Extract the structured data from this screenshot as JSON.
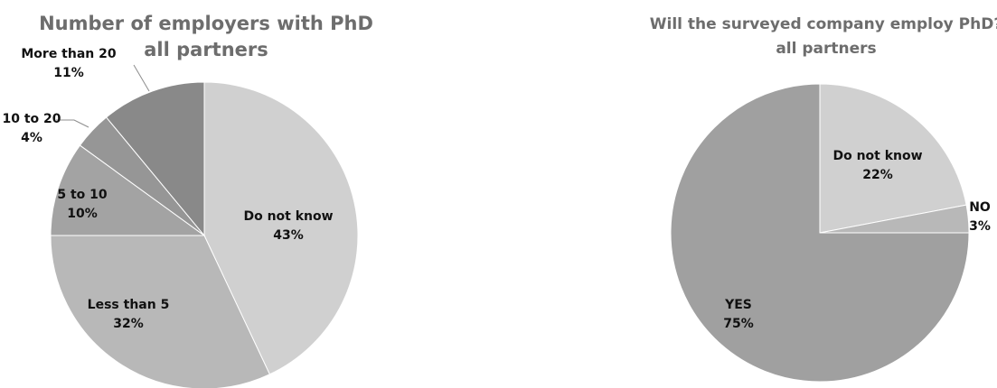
{
  "chart_data": [
    {
      "type": "pie",
      "title": "Number of employers with PhD",
      "subtitle": "all partners",
      "slices": [
        {
          "name": "Do not know",
          "value": 43,
          "value_label": "43%",
          "color": "#d0d0d0"
        },
        {
          "name": "Less than 5",
          "value": 32,
          "value_label": "32%",
          "color": "#b8b8b8"
        },
        {
          "name": "5 to 10",
          "value": 10,
          "value_label": "10%",
          "color": "#a3a3a3"
        },
        {
          "name": "10 to 20",
          "value": 4,
          "value_label": "4%",
          "color": "#969696"
        },
        {
          "name": "More than 20",
          "value": 11,
          "value_label": "11%",
          "color": "#898989"
        }
      ]
    },
    {
      "type": "pie",
      "title": "Will the surveyed company employ PhD?",
      "subtitle": "all partners",
      "slices": [
        {
          "name": "Do not know",
          "value": 22,
          "value_label": "22%",
          "color": "#d0d0d0"
        },
        {
          "name": "NO",
          "value": 3,
          "value_label": "3%",
          "color": "#b8b8b8"
        },
        {
          "name": "YES",
          "value": 75,
          "value_label": "75%",
          "color": "#a0a0a0"
        }
      ]
    }
  ]
}
